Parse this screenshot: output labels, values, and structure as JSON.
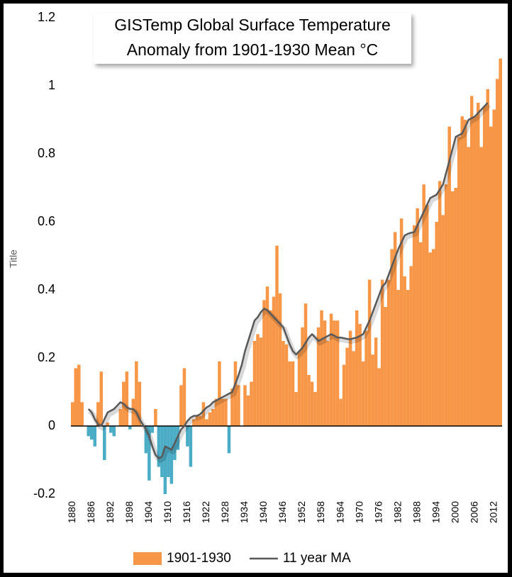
{
  "chart_data": {
    "type": "bar",
    "title": [
      "GISTemp Global Surface Temperature",
      "Anomaly from 1901-1930 Mean °C"
    ],
    "y_label": "Title",
    "x": [
      1880,
      1881,
      1882,
      1883,
      1884,
      1885,
      1886,
      1887,
      1888,
      1889,
      1890,
      1891,
      1892,
      1893,
      1894,
      1895,
      1896,
      1897,
      1898,
      1899,
      1900,
      1901,
      1902,
      1903,
      1904,
      1905,
      1906,
      1907,
      1908,
      1909,
      1910,
      1911,
      1912,
      1913,
      1914,
      1915,
      1916,
      1917,
      1918,
      1919,
      1920,
      1921,
      1922,
      1923,
      1924,
      1925,
      1926,
      1927,
      1928,
      1929,
      1930,
      1931,
      1932,
      1933,
      1934,
      1935,
      1936,
      1937,
      1938,
      1939,
      1940,
      1941,
      1942,
      1943,
      1944,
      1945,
      1946,
      1947,
      1948,
      1949,
      1950,
      1951,
      1952,
      1953,
      1954,
      1955,
      1956,
      1957,
      1958,
      1959,
      1960,
      1961,
      1962,
      1963,
      1964,
      1965,
      1966,
      1967,
      1968,
      1969,
      1970,
      1971,
      1972,
      1973,
      1974,
      1975,
      1976,
      1977,
      1978,
      1979,
      1980,
      1981,
      1982,
      1983,
      1984,
      1985,
      1986,
      1987,
      1988,
      1989,
      1990,
      1991,
      1992,
      1993,
      1994,
      1995,
      1996,
      1997,
      1998,
      1999,
      2000,
      2001,
      2002,
      2003,
      2004,
      2005,
      2006,
      2007,
      2008,
      2009,
      2010,
      2011,
      2012,
      2013,
      2014
    ],
    "series": [
      {
        "name": "1901-1930",
        "type": "bar",
        "color": "#f79646",
        "negative_color": "#4bacc6",
        "values": [
          0.07,
          0.17,
          0.18,
          0.07,
          0,
          -0.03,
          -0.04,
          -0.06,
          0.07,
          0.16,
          -0.1,
          0.01,
          -0.02,
          -0.03,
          0,
          0.05,
          0.13,
          0.16,
          -0.01,
          0.08,
          0.19,
          0.13,
          0,
          -0.08,
          -0.16,
          -0.02,
          0.05,
          -0.12,
          -0.15,
          -0.2,
          -0.15,
          -0.17,
          -0.1,
          -0.07,
          0.12,
          0.17,
          -0.06,
          -0.12,
          0.02,
          0.03,
          0.03,
          0.07,
          0.02,
          0.04,
          0.05,
          0.08,
          0.19,
          0.08,
          0.08,
          -0.08,
          0.11,
          0.19,
          0.12,
          0,
          0.12,
          0.09,
          0.13,
          0.25,
          0.27,
          0.26,
          0.37,
          0.41,
          0.34,
          0.38,
          0.53,
          0.39,
          0.25,
          0.24,
          0.19,
          0.19,
          0.1,
          0.22,
          0.29,
          0.36,
          0.15,
          0.13,
          0.1,
          0.29,
          0.34,
          0.31,
          0.25,
          0.33,
          0.31,
          0.31,
          0.08,
          0.18,
          0.23,
          0.28,
          0.22,
          0.34,
          0.3,
          0.19,
          0.28,
          0.43,
          0.21,
          0.26,
          0.17,
          0.43,
          0.35,
          0.43,
          0.52,
          0.57,
          0.4,
          0.61,
          0.44,
          0.4,
          0.47,
          0.59,
          0.64,
          0.54,
          0.71,
          0.65,
          0.51,
          0.52,
          0.6,
          0.72,
          0.62,
          0.71,
          0.88,
          0.69,
          0.7,
          0.85,
          0.91,
          0.9,
          0.82,
          0.97,
          0.91,
          0.95,
          0.82,
          0.94,
          0.99,
          0.88,
          0.93,
          1.02,
          1.08
        ]
      },
      {
        "name": "11 year MA",
        "type": "line",
        "color": "#595959",
        "x": [
          1885,
          1886,
          1887,
          1888,
          1889,
          1890,
          1891,
          1892,
          1893,
          1894,
          1895,
          1896,
          1897,
          1898,
          1899,
          1900,
          1901,
          1902,
          1903,
          1904,
          1905,
          1906,
          1907,
          1908,
          1909,
          1910,
          1911,
          1912,
          1913,
          1914,
          1915,
          1916,
          1917,
          1918,
          1919,
          1920,
          1921,
          1922,
          1923,
          1924,
          1925,
          1926,
          1927,
          1928,
          1929,
          1930,
          1931,
          1932,
          1933,
          1934,
          1935,
          1936,
          1937,
          1938,
          1939,
          1940,
          1941,
          1942,
          1943,
          1944,
          1945,
          1946,
          1947,
          1948,
          1949,
          1950,
          1951,
          1952,
          1953,
          1954,
          1955,
          1956,
          1957,
          1958,
          1959,
          1960,
          1961,
          1962,
          1963,
          1964,
          1965,
          1966,
          1967,
          1968,
          1969,
          1970,
          1971,
          1972,
          1973,
          1974,
          1975,
          1976,
          1977,
          1978,
          1979,
          1980,
          1981,
          1982,
          1983,
          1984,
          1985,
          1986,
          1987,
          1988,
          1989,
          1990,
          1991,
          1992,
          1993,
          1994,
          1995,
          1996,
          1997,
          1998,
          1999,
          2000,
          2001,
          2002,
          2003,
          2004,
          2005,
          2006,
          2007,
          2008,
          2009,
          2010
        ],
        "values": [
          0.05,
          0.04,
          0.02,
          0.005,
          0,
          0.02,
          0.04,
          0.045,
          0.05,
          0.06,
          0.07,
          0.065,
          0.055,
          0.05,
          0.05,
          0.04,
          0.02,
          0.005,
          -0.01,
          -0.03,
          -0.06,
          -0.085,
          -0.095,
          -0.09,
          -0.06,
          -0.065,
          -0.07,
          -0.05,
          -0.03,
          -0.01,
          0,
          0.015,
          0.025,
          0.03,
          0.03,
          0.035,
          0.045,
          0.055,
          0.06,
          0.07,
          0.075,
          0.08,
          0.085,
          0.09,
          0.095,
          0.1,
          0.125,
          0.15,
          0.18,
          0.22,
          0.25,
          0.28,
          0.31,
          0.32,
          0.335,
          0.345,
          0.34,
          0.33,
          0.32,
          0.31,
          0.3,
          0.29,
          0.265,
          0.24,
          0.22,
          0.21,
          0.22,
          0.23,
          0.245,
          0.26,
          0.27,
          0.26,
          0.25,
          0.255,
          0.26,
          0.265,
          0.27,
          0.265,
          0.26,
          0.26,
          0.258,
          0.256,
          0.255,
          0.258,
          0.26,
          0.265,
          0.27,
          0.29,
          0.31,
          0.335,
          0.36,
          0.385,
          0.41,
          0.42,
          0.445,
          0.47,
          0.495,
          0.52,
          0.54,
          0.56,
          0.565,
          0.568,
          0.57,
          0.59,
          0.61,
          0.63,
          0.65,
          0.67,
          0.675,
          0.68,
          0.695,
          0.71,
          0.745,
          0.78,
          0.815,
          0.85,
          0.855,
          0.86,
          0.88,
          0.9,
          0.905,
          0.91,
          0.92,
          0.93,
          0.94,
          0.95
        ]
      }
    ],
    "xlim": [
      1879.5,
      2014.5
    ],
    "xticks": [
      1880,
      1886,
      1892,
      1898,
      1904,
      1910,
      1916,
      1922,
      1928,
      1934,
      1940,
      1946,
      1952,
      1958,
      1964,
      1970,
      1976,
      1982,
      1988,
      1994,
      2000,
      2006,
      2012
    ],
    "ylim": [
      -0.2,
      1.2
    ],
    "yticks": [
      -0.2,
      0,
      0.2,
      0.4,
      0.6,
      0.8,
      1,
      1.2
    ],
    "grid": false,
    "legend": "bottom"
  }
}
